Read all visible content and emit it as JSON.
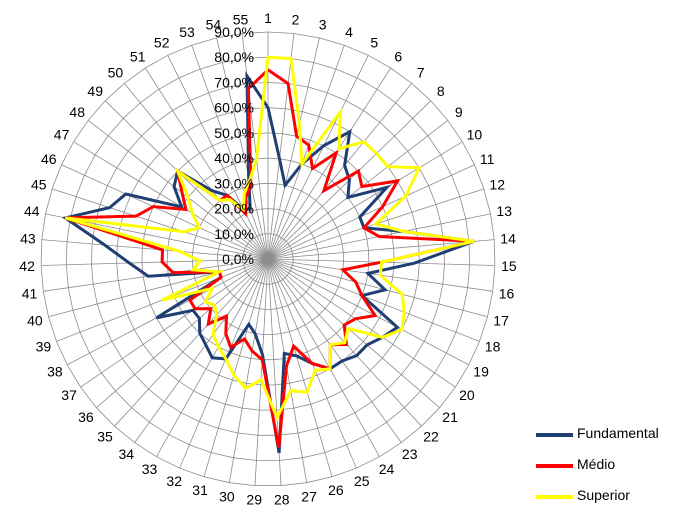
{
  "chart_data": {
    "type": "radar",
    "categories": [
      "1",
      "2",
      "3",
      "4",
      "5",
      "6",
      "7",
      "8",
      "9",
      "10",
      "11",
      "12",
      "13",
      "14",
      "15",
      "16",
      "17",
      "18",
      "19",
      "20",
      "21",
      "22",
      "23",
      "24",
      "25",
      "26",
      "27",
      "28",
      "29",
      "30",
      "31",
      "32",
      "33",
      "34",
      "35",
      "36",
      "37",
      "38",
      "39",
      "40",
      "41",
      "42",
      "43",
      "44",
      "45",
      "46",
      "47",
      "48",
      "49",
      "50",
      "51",
      "52",
      "53",
      "54",
      "55"
    ],
    "r_ticks": [
      "0,0%",
      "10,0%",
      "20,0%",
      "30,0%",
      "40,0%",
      "50,0%",
      "60,0%",
      "70,0%",
      "80,0%",
      "90,0%"
    ],
    "rlim": [
      0,
      90
    ],
    "grid": true,
    "legend_position": "bottom-right",
    "series": [
      {
        "name": "Fundamental",
        "color": "#1F3E74",
        "values": [
          60,
          40,
          30,
          40,
          50,
          60,
          48,
          45,
          40,
          55,
          40,
          40,
          55,
          82,
          58,
          40,
          48,
          40,
          58,
          55,
          52,
          52,
          50,
          50,
          45,
          40,
          38,
          77,
          38,
          30,
          27,
          43,
          45,
          42,
          40,
          36,
          36,
          50,
          20,
          20,
          48,
          55,
          65,
          82,
          66,
          62,
          40,
          47,
          50,
          35,
          30,
          22,
          21,
          34,
          73
        ]
      },
      {
        "name": "Médio",
        "color": "#FF0000",
        "values": [
          75,
          70,
          50,
          48,
          40,
          50,
          35,
          50,
          47,
          60,
          50,
          40,
          45,
          82,
          45,
          30,
          36,
          40,
          48,
          42,
          40,
          46,
          42,
          50,
          45,
          36,
          43,
          75,
          40,
          37,
          33,
          38,
          34,
          28,
          35,
          30,
          35,
          35,
          20,
          20,
          38,
          42,
          42,
          82,
          55,
          50,
          38,
          43,
          50,
          30,
          30,
          20,
          26,
          30,
          68
        ]
      },
      {
        "name": "Superior",
        "color": "#FFFF00",
        "values": [
          80,
          80,
          55,
          40,
          65,
          52,
          60,
          60,
          60,
          70,
          60,
          45,
          55,
          82,
          45,
          45,
          55,
          58,
          60,
          55,
          42,
          45,
          42,
          50,
          48,
          55,
          53,
          63,
          48,
          52,
          48,
          43,
          40,
          37,
          30,
          28,
          30,
          25,
          45,
          20,
          30,
          27,
          35,
          82,
          35,
          30,
          35,
          40,
          50,
          30,
          28,
          22,
          28,
          32,
          40
        ]
      }
    ]
  }
}
